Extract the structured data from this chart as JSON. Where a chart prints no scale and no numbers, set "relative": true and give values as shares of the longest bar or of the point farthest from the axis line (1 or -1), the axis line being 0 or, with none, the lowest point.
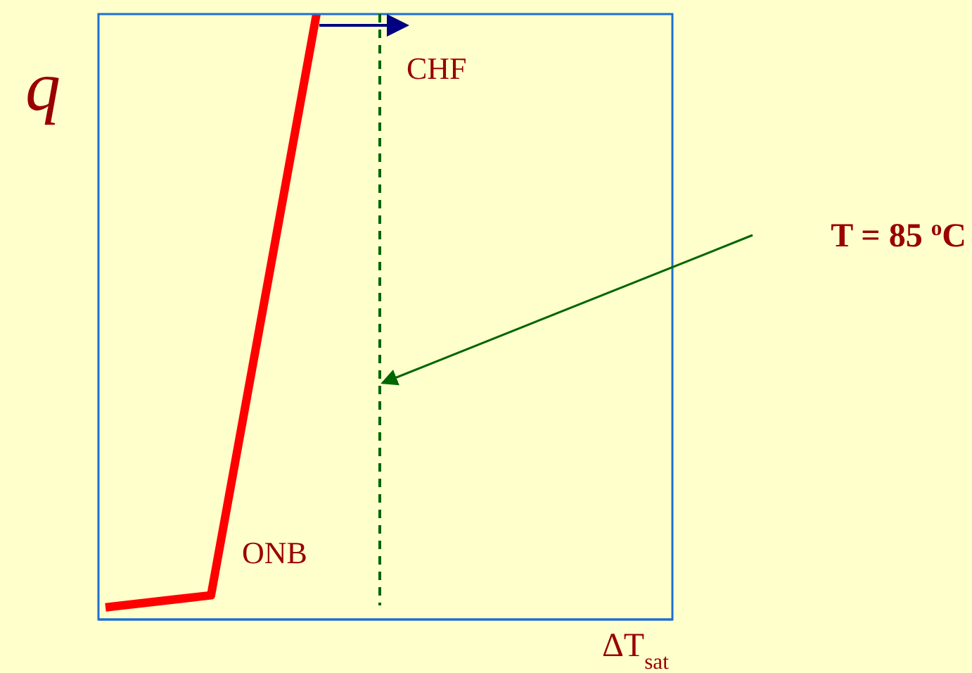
{
  "chart_data": {
    "type": "line",
    "relative": true,
    "ylabel": "q",
    "categories": [
      null,
      null,
      null
    ],
    "marker": "none",
    "line_style": "solid",
    "grid": false,
    "legend": false,
    "series": [
      {
        "color": "#ff0000",
        "values": [
          0.02,
          0.04,
          1
        ]
      }
    ],
    "ref_lines": [
      {
        "axis": "x",
        "color": "#006600",
        "line_style": "dashed"
      }
    ],
    "annotations": [
      "CHF",
      "ONB",
      "T = 85 $^{o}$C",
      "ΔT$_{sat}$"
    ]
  }
}
